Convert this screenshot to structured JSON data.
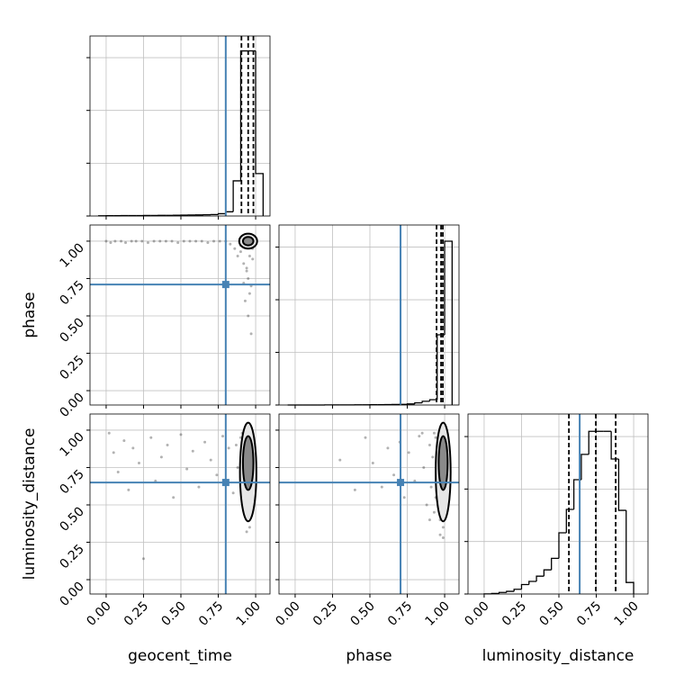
{
  "chart_data": [
    {
      "type": "histogram",
      "truth": 0.8,
      "truth_color": "#4682b4",
      "bins": [
        -0.05,
        0.0,
        0.05,
        0.1,
        0.15,
        0.2,
        0.25,
        0.3,
        0.35,
        0.4,
        0.45,
        0.5,
        0.55,
        0.6,
        0.65,
        0.7,
        0.75,
        0.8,
        0.85,
        0.9,
        0.95,
        1.0,
        1.05
      ],
      "counts": [
        2,
        3,
        3,
        4,
        4,
        4,
        5,
        5,
        6,
        6,
        7,
        8,
        9,
        10,
        12,
        14,
        22,
        40,
        333,
        1564,
        1564,
        402
      ],
      "quantiles": [
        0.905,
        0.95,
        0.985
      ],
      "xlim": [
        -0.108,
        1.096
      ],
      "ylim": [
        0,
        1705
      ],
      "yticks": [
        0,
        500,
        1000,
        1500
      ],
      "grid": true
    },
    {
      "type": "scatter",
      "y_label": "phase",
      "truth": {
        "x": 0.8,
        "y": 0.71
      },
      "truth_color": "#4682b4",
      "xlim": [
        -0.108,
        1.096
      ],
      "ylim": [
        -0.096,
        1.108
      ],
      "yticks": [
        {
          "value": 0,
          "label": "0.00"
        },
        {
          "value": 0.25,
          "label": "0.25"
        },
        {
          "value": 0.5,
          "label": "0.50"
        },
        {
          "value": 0.75,
          "label": "0.75"
        },
        {
          "value": 1,
          "label": "1.00"
        }
      ],
      "x": [
        0.0,
        0.03,
        0.06,
        0.1,
        0.13,
        0.17,
        0.2,
        0.24,
        0.28,
        0.32,
        0.36,
        0.4,
        0.44,
        0.48,
        0.52,
        0.56,
        0.6,
        0.64,
        0.68,
        0.72,
        0.76,
        0.8,
        0.83,
        0.86,
        0.88,
        0.9,
        0.92,
        0.94,
        0.95,
        0.96,
        0.97,
        0.98,
        0.93,
        0.95,
        0.97,
        0.9,
        0.94,
        0.96,
        0.98,
        0.92
      ],
      "y": [
        1.0,
        0.99,
        1.0,
        1.0,
        0.99,
        1.0,
        1.0,
        1.0,
        0.99,
        1.0,
        1.0,
        1.0,
        1.0,
        0.99,
        1.0,
        1.0,
        1.0,
        1.0,
        0.99,
        1.0,
        1.0,
        1.0,
        0.98,
        0.95,
        0.9,
        0.93,
        0.85,
        0.8,
        0.75,
        0.9,
        0.7,
        0.88,
        0.6,
        0.5,
        0.38,
        0.97,
        0.82,
        0.65,
        0.95,
        0.72
      ],
      "contours": [
        {
          "x": 0.95,
          "y": 1.0,
          "rx": 0.06,
          "ry": 0.05
        },
        {
          "x": 0.95,
          "y": 1.0,
          "rx": 0.035,
          "ry": 0.028
        }
      ],
      "grid": true
    },
    {
      "type": "histogram",
      "truth": 0.705,
      "truth_color": "#4682b4",
      "bins": [
        -0.05,
        0.0,
        0.05,
        0.1,
        0.15,
        0.2,
        0.25,
        0.3,
        0.35,
        0.4,
        0.45,
        0.5,
        0.55,
        0.6,
        0.65,
        0.7,
        0.75,
        0.8,
        0.85,
        0.9,
        0.95,
        1.0,
        1.05
      ],
      "counts": [
        0,
        0,
        0,
        0,
        0,
        1,
        1,
        1,
        1,
        2,
        2,
        3,
        3,
        4,
        5,
        6,
        10,
        20,
        35,
        50,
        667,
        1556
      ],
      "quantiles": [
        0.946,
        0.976,
        0.988
      ],
      "xlim": [
        -0.108,
        1.096
      ],
      "ylim": [
        0,
        1710
      ],
      "yticks": [
        0,
        500,
        1000,
        1500
      ],
      "grid": true
    },
    {
      "type": "scatter",
      "x_label": "geocent_time",
      "y_label": "luminosity_distance",
      "truth": {
        "x": 0.8,
        "y": 0.65
      },
      "truth_color": "#4682b4",
      "xlim": [
        -0.108,
        1.096
      ],
      "ylim": [
        -0.096,
        1.108
      ],
      "xticks": [
        {
          "value": 0,
          "label": "0.00"
        },
        {
          "value": 0.25,
          "label": "0.25"
        },
        {
          "value": 0.5,
          "label": "0.50"
        },
        {
          "value": 0.75,
          "label": "0.75"
        },
        {
          "value": 1,
          "label": "1.00"
        }
      ],
      "yticks": [
        {
          "value": 0,
          "label": "0.00"
        },
        {
          "value": 0.25,
          "label": "0.25"
        },
        {
          "value": 0.5,
          "label": "0.50"
        },
        {
          "value": 0.75,
          "label": "0.75"
        },
        {
          "value": 1,
          "label": "1.00"
        }
      ],
      "x": [
        0.02,
        0.05,
        0.08,
        0.12,
        0.15,
        0.18,
        0.22,
        0.25,
        0.3,
        0.33,
        0.37,
        0.41,
        0.45,
        0.5,
        0.54,
        0.58,
        0.62,
        0.66,
        0.7,
        0.74,
        0.78,
        0.82,
        0.85,
        0.88,
        0.9,
        0.92,
        0.94,
        0.95,
        0.96,
        0.97,
        0.98,
        0.93,
        0.95,
        0.97,
        0.9,
        0.94,
        0.96,
        0.91,
        0.99,
        0.87
      ],
      "y": [
        0.98,
        0.85,
        0.72,
        0.93,
        0.6,
        0.88,
        0.78,
        0.14,
        0.95,
        0.66,
        0.82,
        0.9,
        0.55,
        0.97,
        0.74,
        0.86,
        0.62,
        0.92,
        0.8,
        0.7,
        0.96,
        0.88,
        0.58,
        0.75,
        0.95,
        0.68,
        0.85,
        0.45,
        0.35,
        0.55,
        0.62,
        0.9,
        0.4,
        0.5,
        0.8,
        0.32,
        0.7,
        0.98,
        0.65,
        0.9
      ],
      "contours": [
        {
          "x": 0.95,
          "y": 0.72,
          "rx": 0.055,
          "ry": 0.33
        },
        {
          "x": 0.95,
          "y": 0.78,
          "rx": 0.035,
          "ry": 0.18
        }
      ],
      "grid": true
    },
    {
      "type": "scatter",
      "x_label": "phase",
      "truth": {
        "x": 0.705,
        "y": 0.65
      },
      "truth_color": "#4682b4",
      "xlim": [
        -0.108,
        1.096
      ],
      "ylim": [
        -0.096,
        1.108
      ],
      "xticks": [
        {
          "value": 0,
          "label": "0.00"
        },
        {
          "value": 0.25,
          "label": "0.25"
        },
        {
          "value": 0.5,
          "label": "0.50"
        },
        {
          "value": 0.75,
          "label": "0.75"
        },
        {
          "value": 1,
          "label": "1.00"
        }
      ],
      "x": [
        0.3,
        0.4,
        0.47,
        0.52,
        0.58,
        0.62,
        0.66,
        0.7,
        0.73,
        0.76,
        0.8,
        0.83,
        0.86,
        0.88,
        0.9,
        0.91,
        0.92,
        0.93,
        0.94,
        0.95,
        0.96,
        0.97,
        0.98,
        0.99,
        1.0,
        0.97,
        0.98,
        0.99,
        0.96,
        0.95,
        0.93,
        0.98,
        1.0,
        0.99,
        0.97,
        0.85,
        0.9,
        0.94,
        0.99,
        1.0
      ],
      "y": [
        0.8,
        0.6,
        0.95,
        0.78,
        0.62,
        0.88,
        0.7,
        0.92,
        0.55,
        0.85,
        0.66,
        0.96,
        0.75,
        0.5,
        0.9,
        0.62,
        0.82,
        0.45,
        0.95,
        0.7,
        0.58,
        0.4,
        0.98,
        0.35,
        0.85,
        0.3,
        0.5,
        0.65,
        0.88,
        0.72,
        0.98,
        0.78,
        0.6,
        0.92,
        0.45,
        0.98,
        0.4,
        0.55,
        0.28,
        0.75
      ],
      "contours": [
        {
          "x": 0.99,
          "y": 0.72,
          "rx": 0.05,
          "ry": 0.33
        },
        {
          "x": 0.99,
          "y": 0.78,
          "rx": 0.03,
          "ry": 0.18
        }
      ],
      "grid": true
    },
    {
      "type": "histogram",
      "x_label": "luminosity_distance",
      "truth": 0.639,
      "truth_color": "#4682b4",
      "bins": [
        0.0,
        0.05,
        0.1,
        0.15,
        0.2,
        0.25,
        0.3,
        0.35,
        0.4,
        0.45,
        0.5,
        0.55,
        0.6,
        0.65,
        0.7,
        0.75,
        0.8,
        0.85,
        0.9,
        0.95,
        1.0
      ],
      "counts": [
        1,
        5,
        15,
        25,
        45,
        90,
        120,
        170,
        230,
        340,
        583,
        806,
        1089,
        1330,
        1550,
        1550,
        1550,
        1286,
        797,
        110
      ],
      "quantiles": [
        0.567,
        0.747,
        0.88
      ],
      "xlim": [
        -0.108,
        1.096
      ],
      "ylim": [
        0,
        1715
      ],
      "xticks": [
        {
          "value": 0,
          "label": "0.00"
        },
        {
          "value": 0.25,
          "label": "0.25"
        },
        {
          "value": 0.5,
          "label": "0.50"
        },
        {
          "value": 0.75,
          "label": "0.75"
        },
        {
          "value": 1,
          "label": "1.00"
        }
      ],
      "yticks": [
        0,
        500,
        1000,
        1500
      ],
      "grid": true
    }
  ]
}
